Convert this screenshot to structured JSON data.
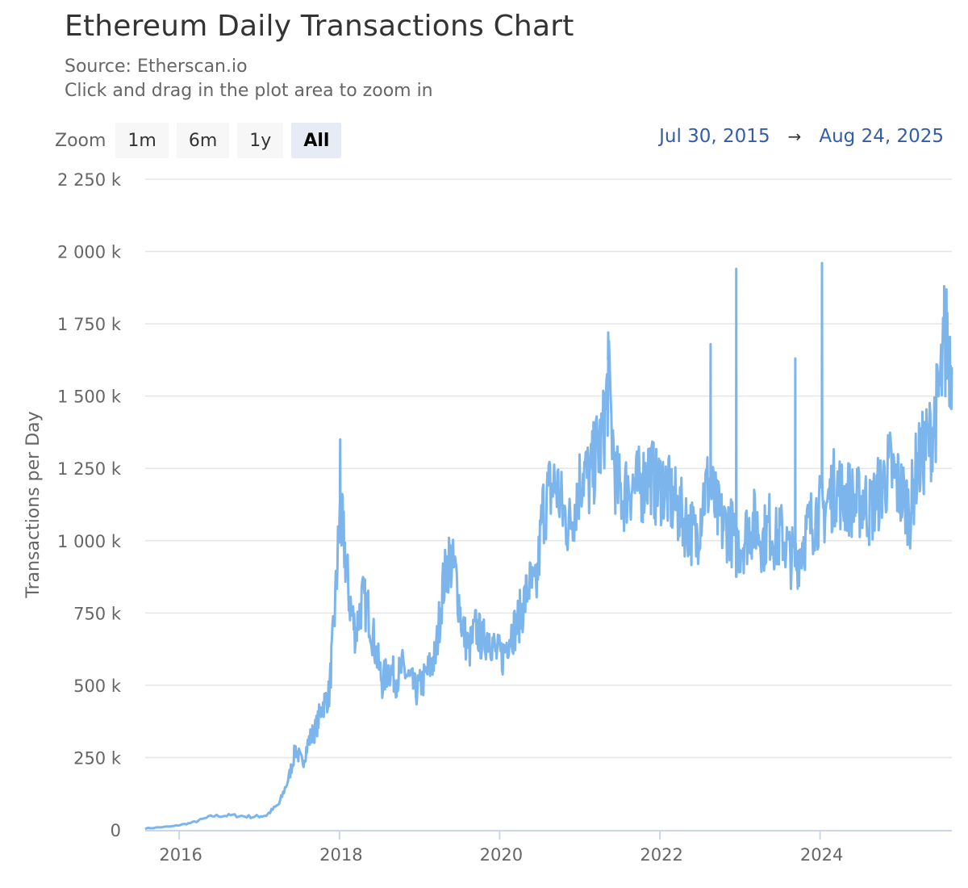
{
  "header": {
    "title": "Ethereum Daily Transactions Chart",
    "source": "Source: Etherscan.io",
    "hint": "Click and drag in the plot area to zoom in"
  },
  "zoom": {
    "label": "Zoom",
    "buttons": [
      "1m",
      "6m",
      "1y",
      "All"
    ],
    "active": "All"
  },
  "range": {
    "from": "Jul 30, 2015",
    "arrow": "→",
    "to": "Aug 24, 2025"
  },
  "colors": {
    "series": "#7cb5ec",
    "grid": "#e6e6e6",
    "axis": "#ccd6eb",
    "range_text": "#335cad"
  },
  "chart_data": {
    "type": "line",
    "title": "Ethereum Daily Transactions Chart",
    "ylabel": "Transactions per Day",
    "xlabel": "",
    "ylim": [
      0,
      2250000
    ],
    "xlim": [
      "2015-07-30",
      "2025-08-24"
    ],
    "y_ticks": [
      0,
      250000,
      500000,
      750000,
      1000000,
      1250000,
      1500000,
      1750000,
      2000000,
      2250000
    ],
    "y_tick_labels": [
      "0",
      "250 k",
      "500 k",
      "750 k",
      "1 000 k",
      "1 250 k",
      "1 500 k",
      "1 750 k",
      "2 000 k",
      "2 250 k"
    ],
    "x_ticks": [
      "2016-01-01",
      "2018-01-01",
      "2020-01-01",
      "2022-01-01",
      "2024-01-01"
    ],
    "x_tick_labels": [
      "2016",
      "2018",
      "2020",
      "2022",
      "2024"
    ],
    "grid": true,
    "series": [
      {
        "x": [
          "2015-07-30",
          "2015-12-01",
          "2016-03-01",
          "2016-06-01",
          "2016-09-01",
          "2016-12-01",
          "2017-02-01",
          "2017-04-01",
          "2017-05-15",
          "2017-06-15",
          "2017-07-15",
          "2017-08-15",
          "2017-09-15",
          "2017-10-15",
          "2017-11-15",
          "2017-12-10",
          "2018-01-04",
          "2018-01-20",
          "2018-02-15",
          "2018-03-15",
          "2018-04-15",
          "2018-05-15",
          "2018-06-15",
          "2018-07-15",
          "2018-08-15",
          "2018-09-15",
          "2018-10-15",
          "2018-11-15",
          "2018-12-15",
          "2019-01-15",
          "2019-02-15",
          "2019-03-15",
          "2019-04-15",
          "2019-05-15",
          "2019-06-15",
          "2019-07-15",
          "2019-08-15",
          "2019-09-15",
          "2019-10-15",
          "2019-11-15",
          "2019-12-15",
          "2020-01-15",
          "2020-02-15",
          "2020-03-15",
          "2020-04-15",
          "2020-05-15",
          "2020-06-15",
          "2020-07-15",
          "2020-08-15",
          "2020-09-15",
          "2020-10-15",
          "2020-11-15",
          "2020-12-15",
          "2021-01-15",
          "2021-02-15",
          "2021-03-15",
          "2021-04-15",
          "2021-05-10",
          "2021-06-15",
          "2021-07-15",
          "2021-08-15",
          "2021-09-15",
          "2021-10-15",
          "2021-11-15",
          "2021-12-15",
          "2022-01-15",
          "2022-02-15",
          "2022-03-15",
          "2022-04-15",
          "2022-05-15",
          "2022-06-15",
          "2022-07-15",
          "2022-08-15",
          "2022-09-15",
          "2022-10-15",
          "2022-11-15",
          "2022-12-15",
          "2023-01-15",
          "2023-02-15",
          "2023-03-15",
          "2023-04-15",
          "2023-05-15",
          "2023-06-15",
          "2023-07-15",
          "2023-08-15",
          "2023-09-15",
          "2023-10-15",
          "2023-11-15",
          "2023-12-15",
          "2024-01-15",
          "2024-02-15",
          "2024-03-15",
          "2024-04-15",
          "2024-05-15",
          "2024-06-15",
          "2024-07-15",
          "2024-08-15",
          "2024-09-15",
          "2024-10-15",
          "2024-11-15",
          "2024-12-15",
          "2025-01-15",
          "2025-02-15",
          "2025-03-15",
          "2025-04-15",
          "2025-05-15",
          "2025-06-15",
          "2025-07-15",
          "2025-08-01",
          "2025-08-24"
        ],
        "values": [
          5000,
          12000,
          25000,
          48000,
          50000,
          45000,
          50000,
          90000,
          180000,
          280000,
          230000,
          310000,
          350000,
          430000,
          470000,
          750000,
          1100000,
          1000000,
          800000,
          680000,
          800000,
          750000,
          620000,
          510000,
          560000,
          520000,
          560000,
          520000,
          480000,
          510000,
          560000,
          600000,
          830000,
          940000,
          880000,
          700000,
          620000,
          700000,
          650000,
          680000,
          610000,
          600000,
          680000,
          700000,
          770000,
          850000,
          820000,
          1100000,
          1170000,
          1200000,
          1100000,
          1050000,
          1150000,
          1250000,
          1200000,
          1300000,
          1350000,
          1550000,
          1200000,
          1150000,
          1200000,
          1180000,
          1200000,
          1250000,
          1180000,
          1200000,
          1150000,
          1120000,
          1080000,
          1050000,
          1000000,
          1150000,
          1200000,
          1100000,
          1050000,
          1050000,
          980000,
          1000000,
          1050000,
          1060000,
          1000000,
          1050000,
          1000000,
          1020000,
          950000,
          930000,
          1000000,
          1050000,
          1100000,
          1100000,
          1150000,
          1200000,
          1150000,
          1150000,
          1120000,
          1150000,
          1100000,
          1150000,
          1200000,
          1250000,
          1200000,
          1150000,
          1100000,
          1250000,
          1300000,
          1350000,
          1450000,
          1600000,
          1700000,
          1600000
        ]
      }
    ],
    "spikes": [
      {
        "x": "2018-01-04",
        "value": 1350000
      },
      {
        "x": "2021-05-10",
        "value": 1720000
      },
      {
        "x": "2022-08-20",
        "value": 1680000
      },
      {
        "x": "2022-12-15",
        "value": 1940000
      },
      {
        "x": "2023-09-10",
        "value": 1630000
      },
      {
        "x": "2024-01-10",
        "value": 1960000
      },
      {
        "x": "2025-07-20",
        "value": 1880000
      }
    ]
  }
}
